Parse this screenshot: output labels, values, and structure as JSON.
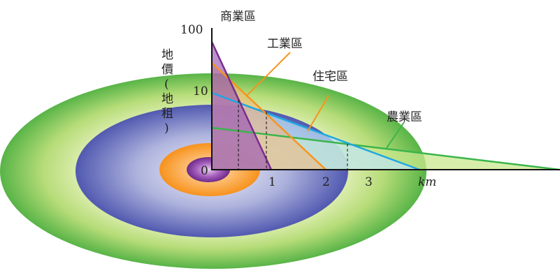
{
  "diagram": {
    "zones": {
      "commercial": "商業區",
      "industrial": "工業區",
      "residential": "住宅區",
      "agricultural": "農業區"
    },
    "y_axis": {
      "label_chars": [
        "地",
        "價",
        "(",
        "地",
        "租",
        ")"
      ],
      "ticks": [
        "100",
        "10",
        "0"
      ]
    },
    "x_axis": {
      "ticks": [
        "1",
        "2",
        "3"
      ],
      "unit": "km"
    },
    "colors": {
      "commercial": "#7b2d8e",
      "industrial": "#f7941d",
      "residential": "#1ea7e1",
      "agricultural": "#3ab54a",
      "outer_ring": "#5cb848",
      "mid_ring": "#5a63b5",
      "inner_ring": "#f7941d",
      "core": "#7b2d8e"
    }
  }
}
